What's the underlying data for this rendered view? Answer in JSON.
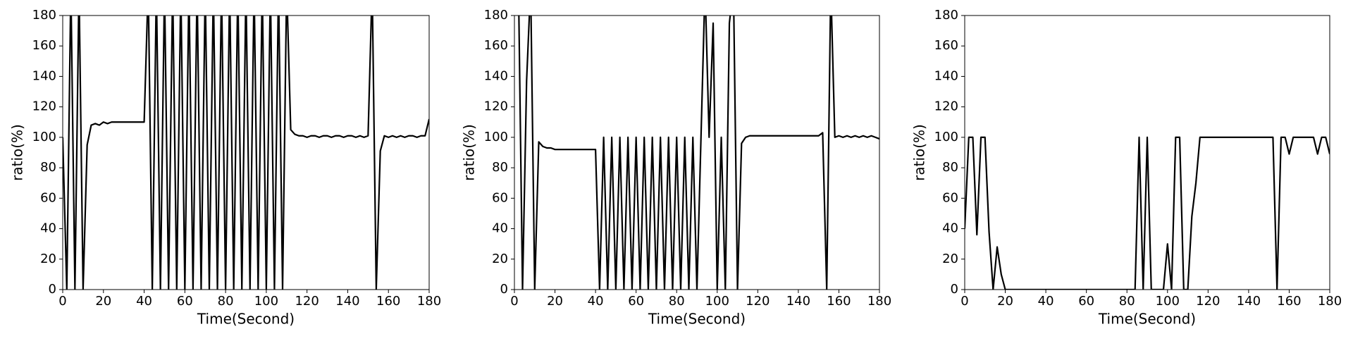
{
  "chart_data": [
    {
      "type": "line",
      "xlabel": "Time(Second)",
      "ylabel": "ratio(%)",
      "color": "#000000",
      "x": [
        0,
        2,
        4,
        6,
        8,
        10,
        12,
        14,
        16,
        18,
        20,
        22,
        24,
        26,
        28,
        30,
        32,
        34,
        36,
        38,
        40,
        42,
        44,
        46,
        48,
        50,
        52,
        54,
        56,
        58,
        60,
        62,
        64,
        66,
        68,
        70,
        72,
        74,
        76,
        78,
        80,
        82,
        84,
        86,
        88,
        90,
        92,
        94,
        96,
        98,
        100,
        102,
        104,
        106,
        108,
        110,
        112,
        114,
        116,
        118,
        120,
        122,
        124,
        126,
        128,
        130,
        132,
        134,
        136,
        138,
        140,
        142,
        144,
        146,
        148,
        150,
        152,
        154,
        156,
        158,
        160,
        162,
        164,
        166,
        168,
        170,
        172,
        174,
        176,
        178,
        180
      ],
      "values": [
        100,
        0,
        200,
        0,
        200,
        0,
        95,
        108,
        109,
        108,
        110,
        109,
        110,
        110,
        110,
        110,
        110,
        110,
        110,
        110,
        110,
        200,
        0,
        200,
        0,
        200,
        0,
        200,
        0,
        200,
        0,
        200,
        0,
        200,
        0,
        200,
        0,
        200,
        0,
        200,
        0,
        200,
        0,
        200,
        0,
        200,
        0,
        200,
        0,
        200,
        0,
        200,
        0,
        200,
        0,
        200,
        105,
        102,
        101,
        101,
        100,
        101,
        101,
        100,
        101,
        101,
        100,
        101,
        101,
        100,
        101,
        101,
        100,
        101,
        100,
        101,
        200,
        0,
        91,
        101,
        100,
        101,
        100,
        101,
        100,
        101,
        101,
        100,
        101,
        101,
        112
      ],
      "xlim": [
        0,
        180
      ],
      "ylim": [
        0,
        180
      ],
      "xticks": [
        0,
        20,
        40,
        60,
        80,
        100,
        120,
        140,
        160,
        180
      ],
      "yticks": [
        0,
        20,
        40,
        60,
        80,
        100,
        120,
        140,
        160,
        180
      ]
    },
    {
      "type": "line",
      "xlabel": "Time(Second)",
      "ylabel": "ratio(%)",
      "color": "#000000",
      "x": [
        0,
        2,
        4,
        6,
        8,
        10,
        12,
        14,
        16,
        18,
        20,
        22,
        24,
        26,
        28,
        30,
        32,
        34,
        36,
        38,
        40,
        42,
        44,
        46,
        48,
        50,
        52,
        54,
        56,
        58,
        60,
        62,
        64,
        66,
        68,
        70,
        72,
        74,
        76,
        78,
        80,
        82,
        84,
        86,
        88,
        90,
        92,
        94,
        96,
        98,
        100,
        102,
        104,
        106,
        108,
        110,
        112,
        114,
        116,
        118,
        120,
        122,
        124,
        126,
        128,
        130,
        132,
        134,
        136,
        138,
        140,
        142,
        144,
        146,
        148,
        150,
        152,
        154,
        156,
        158,
        160,
        162,
        164,
        166,
        168,
        170,
        172,
        174,
        176,
        178,
        180
      ],
      "values": [
        180,
        200,
        0,
        137,
        200,
        0,
        97,
        94,
        93,
        93,
        92,
        92,
        92,
        92,
        92,
        92,
        92,
        92,
        92,
        92,
        92,
        0,
        100,
        0,
        100,
        0,
        100,
        0,
        100,
        0,
        100,
        0,
        100,
        0,
        100,
        0,
        100,
        0,
        100,
        0,
        100,
        0,
        100,
        0,
        100,
        0,
        100,
        200,
        100,
        175,
        0,
        100,
        0,
        175,
        200,
        0,
        96,
        100,
        101,
        101,
        101,
        101,
        101,
        101,
        101,
        101,
        101,
        101,
        101,
        101,
        101,
        101,
        101,
        101,
        101,
        101,
        103,
        0,
        200,
        100,
        101,
        100,
        101,
        100,
        101,
        100,
        101,
        100,
        101,
        100,
        99
      ],
      "xlim": [
        0,
        180
      ],
      "ylim": [
        0,
        180
      ],
      "xticks": [
        0,
        20,
        40,
        60,
        80,
        100,
        120,
        140,
        160,
        180
      ],
      "yticks": [
        0,
        20,
        40,
        60,
        80,
        100,
        120,
        140,
        160,
        180
      ]
    },
    {
      "type": "line",
      "xlabel": "Time(Second)",
      "ylabel": "ratio(%)",
      "color": "#000000",
      "x": [
        0,
        2,
        4,
        6,
        8,
        10,
        12,
        14,
        16,
        18,
        20,
        22,
        24,
        26,
        28,
        30,
        32,
        34,
        36,
        38,
        40,
        42,
        44,
        46,
        48,
        50,
        52,
        54,
        56,
        58,
        60,
        62,
        64,
        66,
        68,
        70,
        72,
        74,
        76,
        78,
        80,
        82,
        84,
        86,
        88,
        90,
        92,
        94,
        96,
        98,
        100,
        102,
        104,
        106,
        108,
        110,
        112,
        114,
        116,
        118,
        120,
        122,
        124,
        126,
        128,
        130,
        132,
        134,
        136,
        138,
        140,
        142,
        144,
        146,
        148,
        150,
        152,
        154,
        156,
        158,
        160,
        162,
        164,
        166,
        168,
        170,
        172,
        174,
        176,
        178,
        180
      ],
      "values": [
        40,
        100,
        100,
        36,
        100,
        100,
        38,
        0,
        28,
        10,
        0,
        0,
        0,
        0,
        0,
        0,
        0,
        0,
        0,
        0,
        0,
        0,
        0,
        0,
        0,
        0,
        0,
        0,
        0,
        0,
        0,
        0,
        0,
        0,
        0,
        0,
        0,
        0,
        0,
        0,
        0,
        0,
        0,
        100,
        0,
        100,
        0,
        0,
        0,
        0,
        30,
        0,
        100,
        100,
        0,
        0,
        48,
        70,
        100,
        100,
        100,
        100,
        100,
        100,
        100,
        100,
        100,
        100,
        100,
        100,
        100,
        100,
        100,
        100,
        100,
        100,
        100,
        0,
        100,
        100,
        89,
        100,
        100,
        100,
        100,
        100,
        100,
        89,
        100,
        100,
        89
      ],
      "xlim": [
        0,
        180
      ],
      "ylim": [
        0,
        180
      ],
      "xticks": [
        0,
        20,
        40,
        60,
        80,
        100,
        120,
        140,
        160,
        180
      ],
      "yticks": [
        0,
        20,
        40,
        60,
        80,
        100,
        120,
        140,
        160,
        180
      ]
    }
  ]
}
